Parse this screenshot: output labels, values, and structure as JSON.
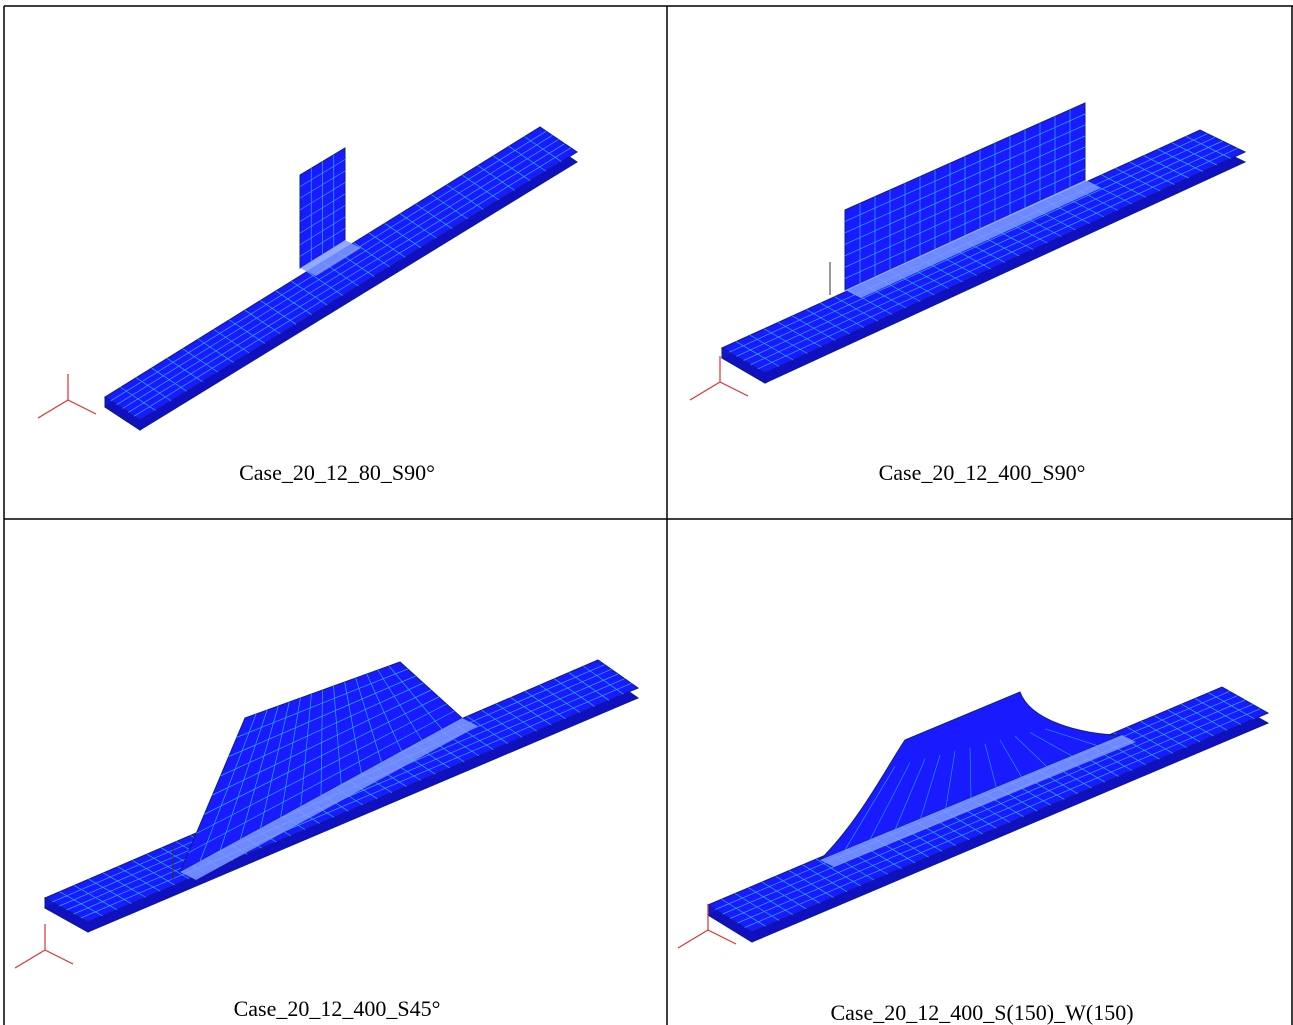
{
  "panels": [
    {
      "caption": "Case_20_12_80_S90°"
    },
    {
      "caption": "Case_20_12_400_S90°"
    },
    {
      "caption": "Case_20_12_400_S45°"
    },
    {
      "caption": "Case_20_12_400_S(150)_W(150)"
    }
  ]
}
